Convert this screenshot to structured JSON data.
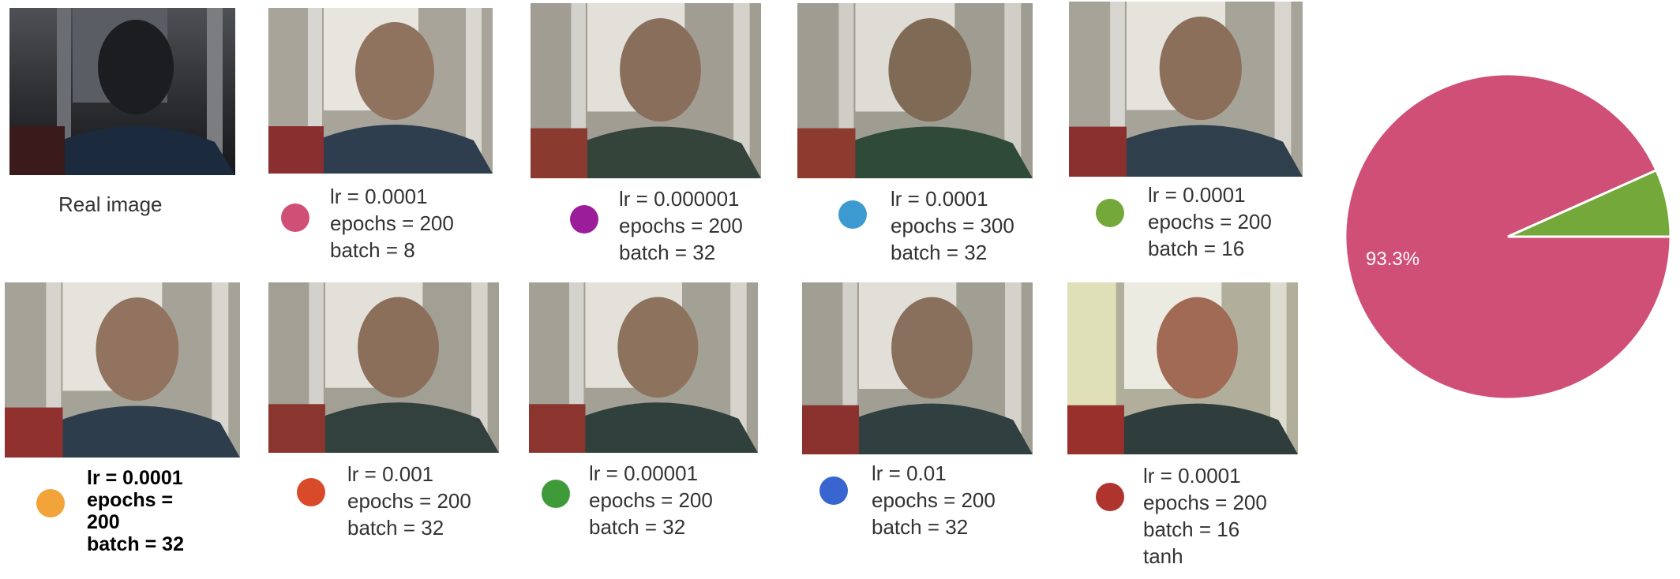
{
  "real_image": {
    "caption": "Real image"
  },
  "panels": [
    {
      "color": "#d04f76",
      "lines": [
        "lr = 0.0001",
        "epochs = 200",
        "batch = 8"
      ],
      "bold": false
    },
    {
      "color": "#9b1d9a",
      "lines": [
        "lr = 0.000001",
        "epochs = 200",
        "batch = 32"
      ],
      "bold": false
    },
    {
      "color": "#3d9ad1",
      "lines": [
        "lr = 0.0001",
        "epochs = 300",
        "batch = 32"
      ],
      "bold": false
    },
    {
      "color": "#74a83a",
      "lines": [
        "lr = 0.0001",
        "epochs = 200",
        "batch = 16"
      ],
      "bold": false
    },
    {
      "color": "#f2a33a",
      "lines": [
        "lr = 0.0001",
        "epochs =",
        "200",
        "batch = 32"
      ],
      "bold": true
    },
    {
      "color": "#d94a2a",
      "lines": [
        "lr = 0.001",
        "epochs = 200",
        "batch = 32"
      ],
      "bold": false
    },
    {
      "color": "#3f9a3a",
      "lines": [
        "lr = 0.00001",
        "epochs = 200",
        "batch = 32"
      ],
      "bold": false
    },
    {
      "color": "#3965d1",
      "lines": [
        "lr = 0.01",
        "epochs = 200",
        "batch = 32"
      ],
      "bold": false
    },
    {
      "color": "#b0342e",
      "lines": [
        "lr = 0.0001",
        "epochs = 200",
        "batch = 16",
        "tanh"
      ],
      "bold": false
    }
  ],
  "chart_data": {
    "type": "pie",
    "slices": [
      {
        "value": 93.3,
        "color": "#d04f76",
        "label": "93.3%"
      },
      {
        "value": 6.7,
        "color": "#74a83a",
        "label": ""
      }
    ]
  }
}
